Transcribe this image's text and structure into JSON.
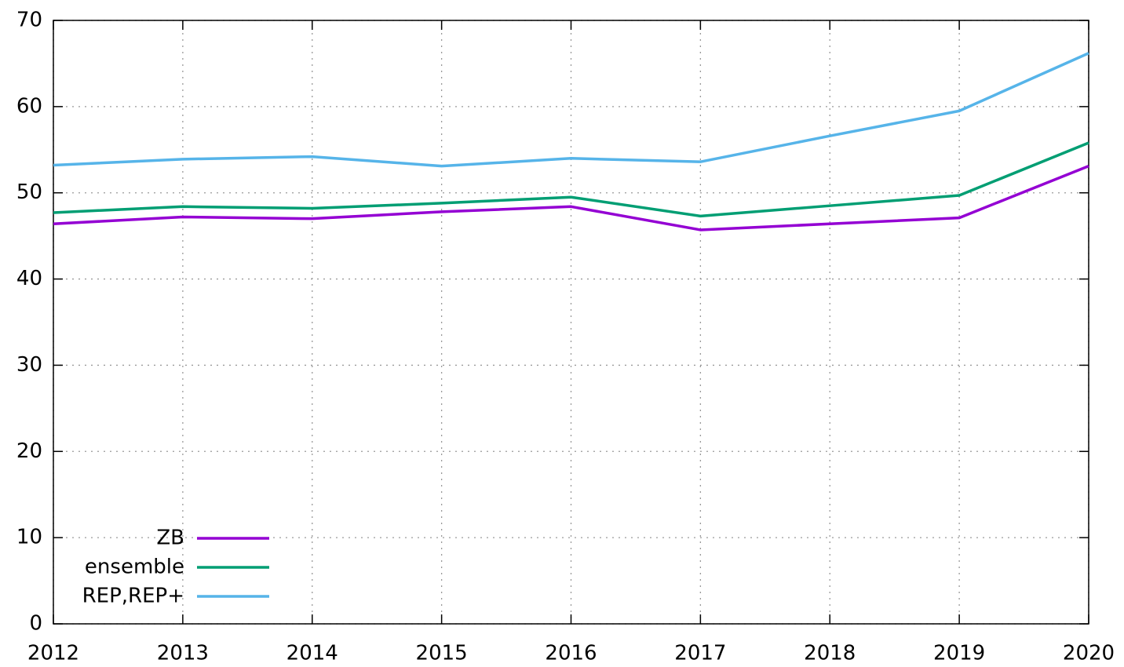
{
  "chart_data": {
    "type": "line",
    "x": [
      2012,
      2013,
      2014,
      2015,
      2016,
      2017,
      2018,
      2019,
      2020
    ],
    "xlim": [
      2012,
      2020
    ],
    "xticks": [
      2012,
      2013,
      2014,
      2015,
      2016,
      2017,
      2018,
      2019,
      2020
    ],
    "ylim": [
      0,
      70
    ],
    "yticks": [
      0,
      10,
      20,
      30,
      40,
      50,
      60,
      70
    ],
    "grid": true,
    "legend": "lower left",
    "series": [
      {
        "name": "ZB",
        "color": "#9400d3",
        "values": [
          46.4,
          47.2,
          47.0,
          47.8,
          48.4,
          45.7,
          46.4,
          47.1,
          53.1
        ]
      },
      {
        "name": "ensemble",
        "color": "#009e73",
        "values": [
          47.7,
          48.4,
          48.2,
          48.8,
          49.5,
          47.3,
          48.5,
          49.7,
          55.8
        ]
      },
      {
        "name": "REP,REP+",
        "color": "#56b4e9",
        "values": [
          53.2,
          53.9,
          54.2,
          53.1,
          54.0,
          53.6,
          56.6,
          59.5,
          66.2
        ]
      }
    ]
  }
}
